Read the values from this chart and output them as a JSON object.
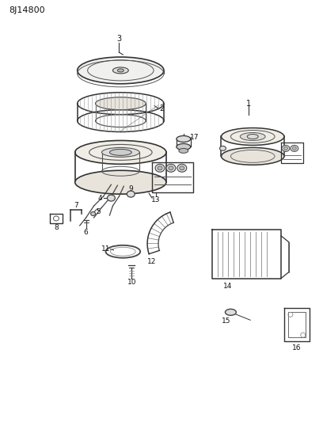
{
  "title": "8J14800",
  "bg": "#ffffff",
  "line_color": "#333333",
  "fig_w": 4.08,
  "fig_h": 5.33,
  "dpi": 100
}
